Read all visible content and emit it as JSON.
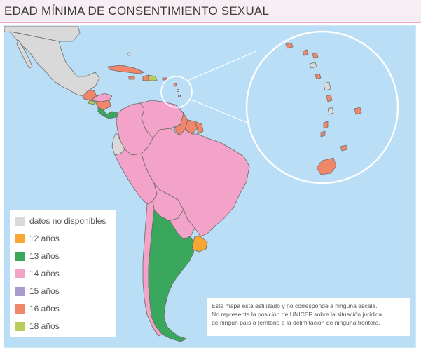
{
  "title": "EDAD MÍNIMA DE CONSENTIMIENTO SEXUAL",
  "colors": {
    "no_data": "#d9d9d9",
    "age_12": "#f7a733",
    "age_13": "#3aa85c",
    "age_14": "#f3a2c8",
    "age_15": "#a79ccb",
    "age_16": "#f0876a",
    "age_18": "#b7cf5a",
    "water": "#b9def6",
    "border": "#6a6a6a"
  },
  "legend": {
    "items": [
      {
        "label": "datos no disponibles",
        "color": "#d9d9d9"
      },
      {
        "label": "12 años",
        "color": "#f7a733"
      },
      {
        "label": "13 años",
        "color": "#3aa85c"
      },
      {
        "label": "14 años",
        "color": "#f3a2c8"
      },
      {
        "label": "15 años",
        "color": "#a79ccb"
      },
      {
        "label": "16 años",
        "color": "#f0876a"
      },
      {
        "label": "18 años",
        "color": "#b7cf5a"
      }
    ]
  },
  "note": {
    "line1": "Este mapa está estilizado y no corresponde a ninguna escala.",
    "line2": "No representa la posición de UNICEF sobre la situación jurídica",
    "line3": "de ningún país o territorio o la delimitación de ninguna frontera."
  }
}
